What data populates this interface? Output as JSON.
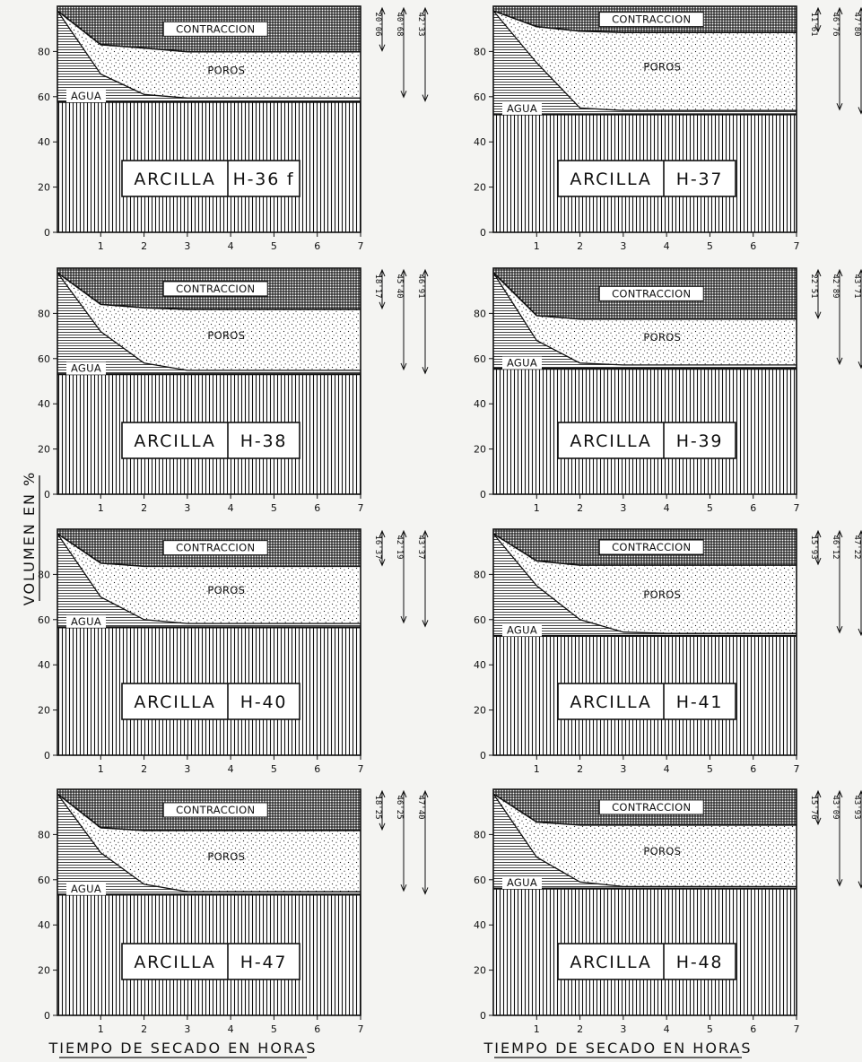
{
  "ylabel": "VOLUMEN EN %",
  "xlabel": "TIEMPO DE SECADO EN HORAS",
  "region_labels": {
    "shrink": "CONTRACCION",
    "pores": "POROS",
    "water": "AGUA"
  },
  "clay_label": "ARCILLA",
  "x_ticks": [
    "1",
    "2",
    "3",
    "4",
    "5",
    "6",
    "7"
  ],
  "y_ticks": [
    "0",
    "20",
    "40",
    "60",
    "80"
  ],
  "chart_data": [
    {
      "type": "area",
      "sample": "H-36 f",
      "xlim": [
        0,
        7
      ],
      "ylim": [
        0,
        100
      ],
      "x": [
        0,
        1,
        2,
        3,
        4,
        5,
        6,
        7
      ],
      "series": [
        {
          "name": "ARCILLA",
          "values": [
            57.7,
            57.7,
            57.7,
            57.7,
            57.7,
            57.7,
            57.7,
            57.7
          ]
        },
        {
          "name": "AGUA",
          "values": [
            98,
            70,
            61,
            59.4,
            59.4,
            59.4,
            59.4,
            59.4
          ]
        },
        {
          "name": "POROS",
          "values": [
            98,
            83,
            81.5,
            79.9,
            79.9,
            79.9,
            79.9,
            79.9
          ]
        },
        {
          "name": "CONTRACCION",
          "values": [
            100,
            100,
            100,
            100,
            100,
            100,
            100,
            100
          ]
        }
      ],
      "annotations": [
        "20'06",
        "40'68",
        "42'33"
      ]
    },
    {
      "type": "area",
      "sample": "H-37",
      "xlim": [
        0,
        7
      ],
      "ylim": [
        0,
        100
      ],
      "x": [
        0,
        1,
        2,
        3,
        4,
        5,
        6,
        7
      ],
      "series": [
        {
          "name": "ARCILLA",
          "values": [
            52.2,
            52.2,
            52.2,
            52.2,
            52.2,
            52.2,
            52.2,
            52.2
          ]
        },
        {
          "name": "AGUA",
          "values": [
            98,
            75,
            55,
            53.9,
            53.9,
            53.9,
            53.9,
            53.9
          ]
        },
        {
          "name": "POROS",
          "values": [
            98,
            91,
            89,
            88.4,
            88.4,
            88.4,
            88.4,
            88.4
          ]
        },
        {
          "name": "CONTRACCION",
          "values": [
            100,
            100,
            100,
            100,
            100,
            100,
            100,
            100
          ]
        }
      ],
      "annotations": [
        "11'61",
        "46'76",
        "47'80"
      ]
    },
    {
      "type": "area",
      "sample": "H-38",
      "xlim": [
        0,
        7
      ],
      "ylim": [
        0,
        100
      ],
      "x": [
        0,
        1,
        2,
        3,
        4,
        5,
        6,
        7
      ],
      "series": [
        {
          "name": "ARCILLA",
          "values": [
            53.1,
            53.1,
            53.1,
            53.1,
            53.1,
            53.1,
            53.1,
            53.1
          ]
        },
        {
          "name": "AGUA",
          "values": [
            98,
            72,
            58,
            54.8,
            54.8,
            54.8,
            54.8,
            54.8
          ]
        },
        {
          "name": "POROS",
          "values": [
            98,
            84,
            82.5,
            81.8,
            81.8,
            81.8,
            81.8,
            81.8
          ]
        },
        {
          "name": "CONTRACCION",
          "values": [
            100,
            100,
            100,
            100,
            100,
            100,
            100,
            100
          ]
        }
      ],
      "annotations": [
        "18'17",
        "45'40",
        "46'91"
      ]
    },
    {
      "type": "area",
      "sample": "H-39",
      "xlim": [
        0,
        7
      ],
      "ylim": [
        0,
        100
      ],
      "x": [
        0,
        1,
        2,
        3,
        4,
        5,
        6,
        7
      ],
      "series": [
        {
          "name": "ARCILLA",
          "values": [
            55.5,
            55.5,
            55.5,
            55.5,
            55.5,
            55.5,
            55.5,
            55.5
          ]
        },
        {
          "name": "AGUA",
          "values": [
            98,
            68,
            58,
            57.2,
            57.2,
            57.2,
            57.2,
            57.2
          ]
        },
        {
          "name": "POROS",
          "values": [
            98,
            79,
            77.5,
            77.5,
            77.5,
            77.5,
            77.5,
            77.5
          ]
        },
        {
          "name": "CONTRACCION",
          "values": [
            100,
            100,
            100,
            100,
            100,
            100,
            100,
            100
          ]
        }
      ],
      "annotations": [
        "22'51",
        "42'89",
        "43'71"
      ]
    },
    {
      "type": "area",
      "sample": "H-40",
      "xlim": [
        0,
        7
      ],
      "ylim": [
        0,
        100
      ],
      "x": [
        0,
        1,
        2,
        3,
        4,
        5,
        6,
        7
      ],
      "series": [
        {
          "name": "ARCILLA",
          "values": [
            56.6,
            56.6,
            56.6,
            56.6,
            56.6,
            56.6,
            56.6,
            56.6
          ]
        },
        {
          "name": "AGUA",
          "values": [
            98,
            70,
            60,
            58.3,
            58.3,
            58.3,
            58.3,
            58.3
          ]
        },
        {
          "name": "POROS",
          "values": [
            98,
            85,
            83.6,
            83.6,
            83.6,
            83.6,
            83.6,
            83.6
          ]
        },
        {
          "name": "CONTRACCION",
          "values": [
            100,
            100,
            100,
            100,
            100,
            100,
            100,
            100
          ]
        }
      ],
      "annotations": [
        "16'37",
        "42'19",
        "43'37"
      ]
    },
    {
      "type": "area",
      "sample": "H-41",
      "xlim": [
        0,
        7
      ],
      "ylim": [
        0,
        100
      ],
      "x": [
        0,
        1,
        2,
        3,
        4,
        5,
        6,
        7
      ],
      "series": [
        {
          "name": "ARCILLA",
          "values": [
            52.8,
            52.8,
            52.8,
            52.8,
            52.8,
            52.8,
            52.8,
            52.8
          ]
        },
        {
          "name": "AGUA",
          "values": [
            98,
            75,
            60,
            54.5,
            53.9,
            53.9,
            53.9,
            53.9
          ]
        },
        {
          "name": "POROS",
          "values": [
            98,
            86,
            84.1,
            84.1,
            84.1,
            84.1,
            84.1,
            84.1
          ]
        },
        {
          "name": "CONTRACCION",
          "values": [
            100,
            100,
            100,
            100,
            100,
            100,
            100,
            100
          ]
        }
      ],
      "annotations": [
        "15'93",
        "46'12",
        "47'22"
      ]
    },
    {
      "type": "area",
      "sample": "H-47",
      "xlim": [
        0,
        7
      ],
      "ylim": [
        0,
        100
      ],
      "x": [
        0,
        1,
        2,
        3,
        4,
        5,
        6,
        7
      ],
      "series": [
        {
          "name": "ARCILLA",
          "values": [
            53.4,
            53.4,
            53.4,
            53.4,
            53.4,
            53.4,
            53.4,
            53.4
          ]
        },
        {
          "name": "AGUA",
          "values": [
            98,
            72,
            58,
            54.7,
            54.7,
            54.7,
            54.7,
            54.7
          ]
        },
        {
          "name": "POROS",
          "values": [
            98,
            83,
            81.8,
            81.8,
            81.8,
            81.8,
            81.8,
            81.8
          ]
        },
        {
          "name": "CONTRACCION",
          "values": [
            100,
            100,
            100,
            100,
            100,
            100,
            100,
            100
          ]
        }
      ],
      "annotations": [
        "18'25",
        "46'25",
        "47'40"
      ]
    },
    {
      "type": "area",
      "sample": "H-48",
      "xlim": [
        0,
        7
      ],
      "ylim": [
        0,
        100
      ],
      "x": [
        0,
        1,
        2,
        3,
        4,
        5,
        6,
        7
      ],
      "series": [
        {
          "name": "ARCILLA",
          "values": [
            56.1,
            56.1,
            56.1,
            56.1,
            56.1,
            56.1,
            56.1,
            56.1
          ]
        },
        {
          "name": "AGUA",
          "values": [
            98,
            70,
            59,
            57,
            57,
            57,
            57,
            57
          ]
        },
        {
          "name": "POROS",
          "values": [
            98,
            85.5,
            84.2,
            84.2,
            84.2,
            84.2,
            84.2,
            84.2
          ]
        },
        {
          "name": "CONTRACCION",
          "values": [
            100,
            100,
            100,
            100,
            100,
            100,
            100,
            100
          ]
        }
      ],
      "annotations": [
        "15'76",
        "43'09",
        "43'93"
      ]
    }
  ]
}
